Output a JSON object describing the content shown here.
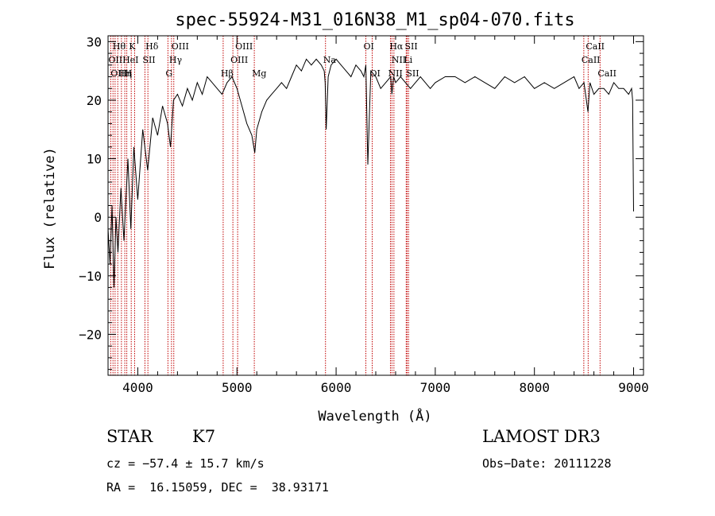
{
  "chart_data": {
    "type": "line",
    "title": "spec-55924-M31_016N38_M1_sp04-070.fits",
    "xlabel": "Wavelength (Å)",
    "ylabel": "Flux (relative)",
    "xlim": [
      3700,
      9100
    ],
    "ylim": [
      -27,
      31
    ],
    "xticks": [
      4000,
      5000,
      6000,
      7000,
      8000,
      9000
    ],
    "yticks": [
      -20,
      -10,
      0,
      10,
      20,
      30
    ],
    "grid": false,
    "series": [
      {
        "name": "spectrum",
        "color": "#000000",
        "x": [
          3700,
          3720,
          3740,
          3760,
          3780,
          3800,
          3830,
          3860,
          3900,
          3930,
          3960,
          4000,
          4050,
          4100,
          4150,
          4200,
          4250,
          4300,
          4330,
          4360,
          4400,
          4450,
          4500,
          4550,
          4600,
          4650,
          4700,
          4750,
          4800,
          4850,
          4900,
          4950,
          5000,
          5050,
          5100,
          5150,
          5180,
          5200,
          5250,
          5300,
          5350,
          5400,
          5450,
          5500,
          5550,
          5600,
          5650,
          5700,
          5750,
          5800,
          5850,
          5880,
          5890,
          5900,
          5920,
          5950,
          6000,
          6050,
          6100,
          6150,
          6200,
          6250,
          6280,
          6300,
          6320,
          6350,
          6400,
          6450,
          6500,
          6550,
          6563,
          6580,
          6600,
          6650,
          6700,
          6750,
          6800,
          6850,
          6900,
          6950,
          7000,
          7100,
          7200,
          7300,
          7400,
          7500,
          7600,
          7700,
          7800,
          7900,
          8000,
          8100,
          8200,
          8300,
          8400,
          8450,
          8500,
          8540,
          8560,
          8600,
          8650,
          8700,
          8750,
          8800,
          8850,
          8900,
          8950,
          8980,
          8990,
          9000
        ],
        "y": [
          -2,
          -8,
          2,
          -12,
          0,
          -6,
          5,
          -4,
          10,
          -2,
          12,
          3,
          15,
          8,
          17,
          14,
          19,
          16,
          12,
          20,
          21,
          19,
          22,
          20,
          23,
          21,
          24,
          23,
          22,
          21,
          23,
          24,
          22,
          19,
          16,
          14,
          11,
          15,
          18,
          20,
          21,
          22,
          23,
          22,
          24,
          26,
          25,
          27,
          26,
          27,
          26,
          25,
          23,
          15,
          24,
          26,
          27,
          26,
          25,
          24,
          26,
          25,
          24,
          26,
          9,
          25,
          24,
          22,
          23,
          24,
          21,
          24,
          23,
          24,
          23,
          22,
          23,
          24,
          23,
          22,
          23,
          24,
          24,
          23,
          24,
          23,
          22,
          24,
          23,
          24,
          22,
          23,
          22,
          23,
          24,
          22,
          23,
          18,
          23,
          21,
          22,
          22,
          21,
          23,
          22,
          22,
          21,
          22,
          20,
          1
        ]
      }
    ],
    "lines": [
      {
        "wave": 3727,
        "name": "OII"
      },
      {
        "wave": 3750,
        "name": "OIII"
      },
      {
        "wave": 3771,
        "name": "Hθ"
      },
      {
        "wave": 3798,
        "name": "Hη"
      },
      {
        "wave": 3835,
        "name": "Hη"
      },
      {
        "wave": 3869,
        "name": "HeI"
      },
      {
        "wave": 3889,
        "name": "H"
      },
      {
        "wave": 3934,
        "name": "K"
      },
      {
        "wave": 3968,
        "name": "H"
      },
      {
        "wave": 4072,
        "name": "SII"
      },
      {
        "wave": 4102,
        "name": "Hδ"
      },
      {
        "wave": 4304,
        "name": "G"
      },
      {
        "wave": 4340,
        "name": "Hγ"
      },
      {
        "wave": 4363,
        "name": "OIII"
      },
      {
        "wave": 4861,
        "name": "Hβ"
      },
      {
        "wave": 4959,
        "name": "OIII"
      },
      {
        "wave": 5007,
        "name": "OIII"
      },
      {
        "wave": 5175,
        "name": "Mg"
      },
      {
        "wave": 5893,
        "name": "Na"
      },
      {
        "wave": 6300,
        "name": "OI"
      },
      {
        "wave": 6364,
        "name": "OI"
      },
      {
        "wave": 6548,
        "name": "NII"
      },
      {
        "wave": 6563,
        "name": "Hα"
      },
      {
        "wave": 6583,
        "name": "NII"
      },
      {
        "wave": 6707,
        "name": "Li"
      },
      {
        "wave": 6716,
        "name": "SII"
      },
      {
        "wave": 6731,
        "name": "SII"
      },
      {
        "wave": 8498,
        "name": "CaII"
      },
      {
        "wave": 8542,
        "name": "CaII"
      },
      {
        "wave": 8662,
        "name": "CaII"
      }
    ],
    "line_labels": [
      {
        "text": "Hθ",
        "wave": 3771,
        "row": 0
      },
      {
        "text": "K",
        "wave": 3934,
        "row": 0
      },
      {
        "text": "Hδ",
        "wave": 4102,
        "row": 0
      },
      {
        "text": "OIII",
        "wave": 4363,
        "row": 0
      },
      {
        "text": "OIII",
        "wave": 5007,
        "row": 0
      },
      {
        "text": "OI",
        "wave": 6300,
        "row": 0
      },
      {
        "text": "Hα",
        "wave": 6563,
        "row": 0
      },
      {
        "text": "SII",
        "wave": 6716,
        "row": 0
      },
      {
        "text": "CaII",
        "wave": 8542,
        "row": 0
      },
      {
        "text": "OII",
        "wave": 3727,
        "row": 1
      },
      {
        "text": "HeI",
        "wave": 3869,
        "row": 1
      },
      {
        "text": "SII",
        "wave": 4072,
        "row": 1
      },
      {
        "text": "Hγ",
        "wave": 4340,
        "row": 1
      },
      {
        "text": "OIII",
        "wave": 4959,
        "row": 1
      },
      {
        "text": "Na",
        "wave": 5893,
        "row": 1
      },
      {
        "text": "NII",
        "wave": 6583,
        "row": 1
      },
      {
        "text": "Li",
        "wave": 6707,
        "row": 1
      },
      {
        "text": "CaII",
        "wave": 8498,
        "row": 1
      },
      {
        "text": "OIII",
        "wave": 3750,
        "row": 2
      },
      {
        "text": "Hη",
        "wave": 3835,
        "row": 2
      },
      {
        "text": "H",
        "wave": 3889,
        "row": 2
      },
      {
        "text": "G",
        "wave": 4304,
        "row": 2
      },
      {
        "text": "Hβ",
        "wave": 4861,
        "row": 2
      },
      {
        "text": "Mg",
        "wave": 5175,
        "row": 2
      },
      {
        "text": "OI",
        "wave": 6364,
        "row": 2
      },
      {
        "text": "NII",
        "wave": 6548,
        "row": 2
      },
      {
        "text": "SII",
        "wave": 6731,
        "row": 2
      },
      {
        "text": "CaII",
        "wave": 8662,
        "row": 2
      }
    ],
    "line_color": "#c00000"
  },
  "info": {
    "object_class": "STAR",
    "subclass": "K7",
    "survey": "LAMOST DR3",
    "cz": "cz = −57.4 ± 15.7 km/s",
    "obs_date": "Obs−Date: 20111228",
    "coords": "RA =  16.15059, DEC =  38.93171"
  }
}
